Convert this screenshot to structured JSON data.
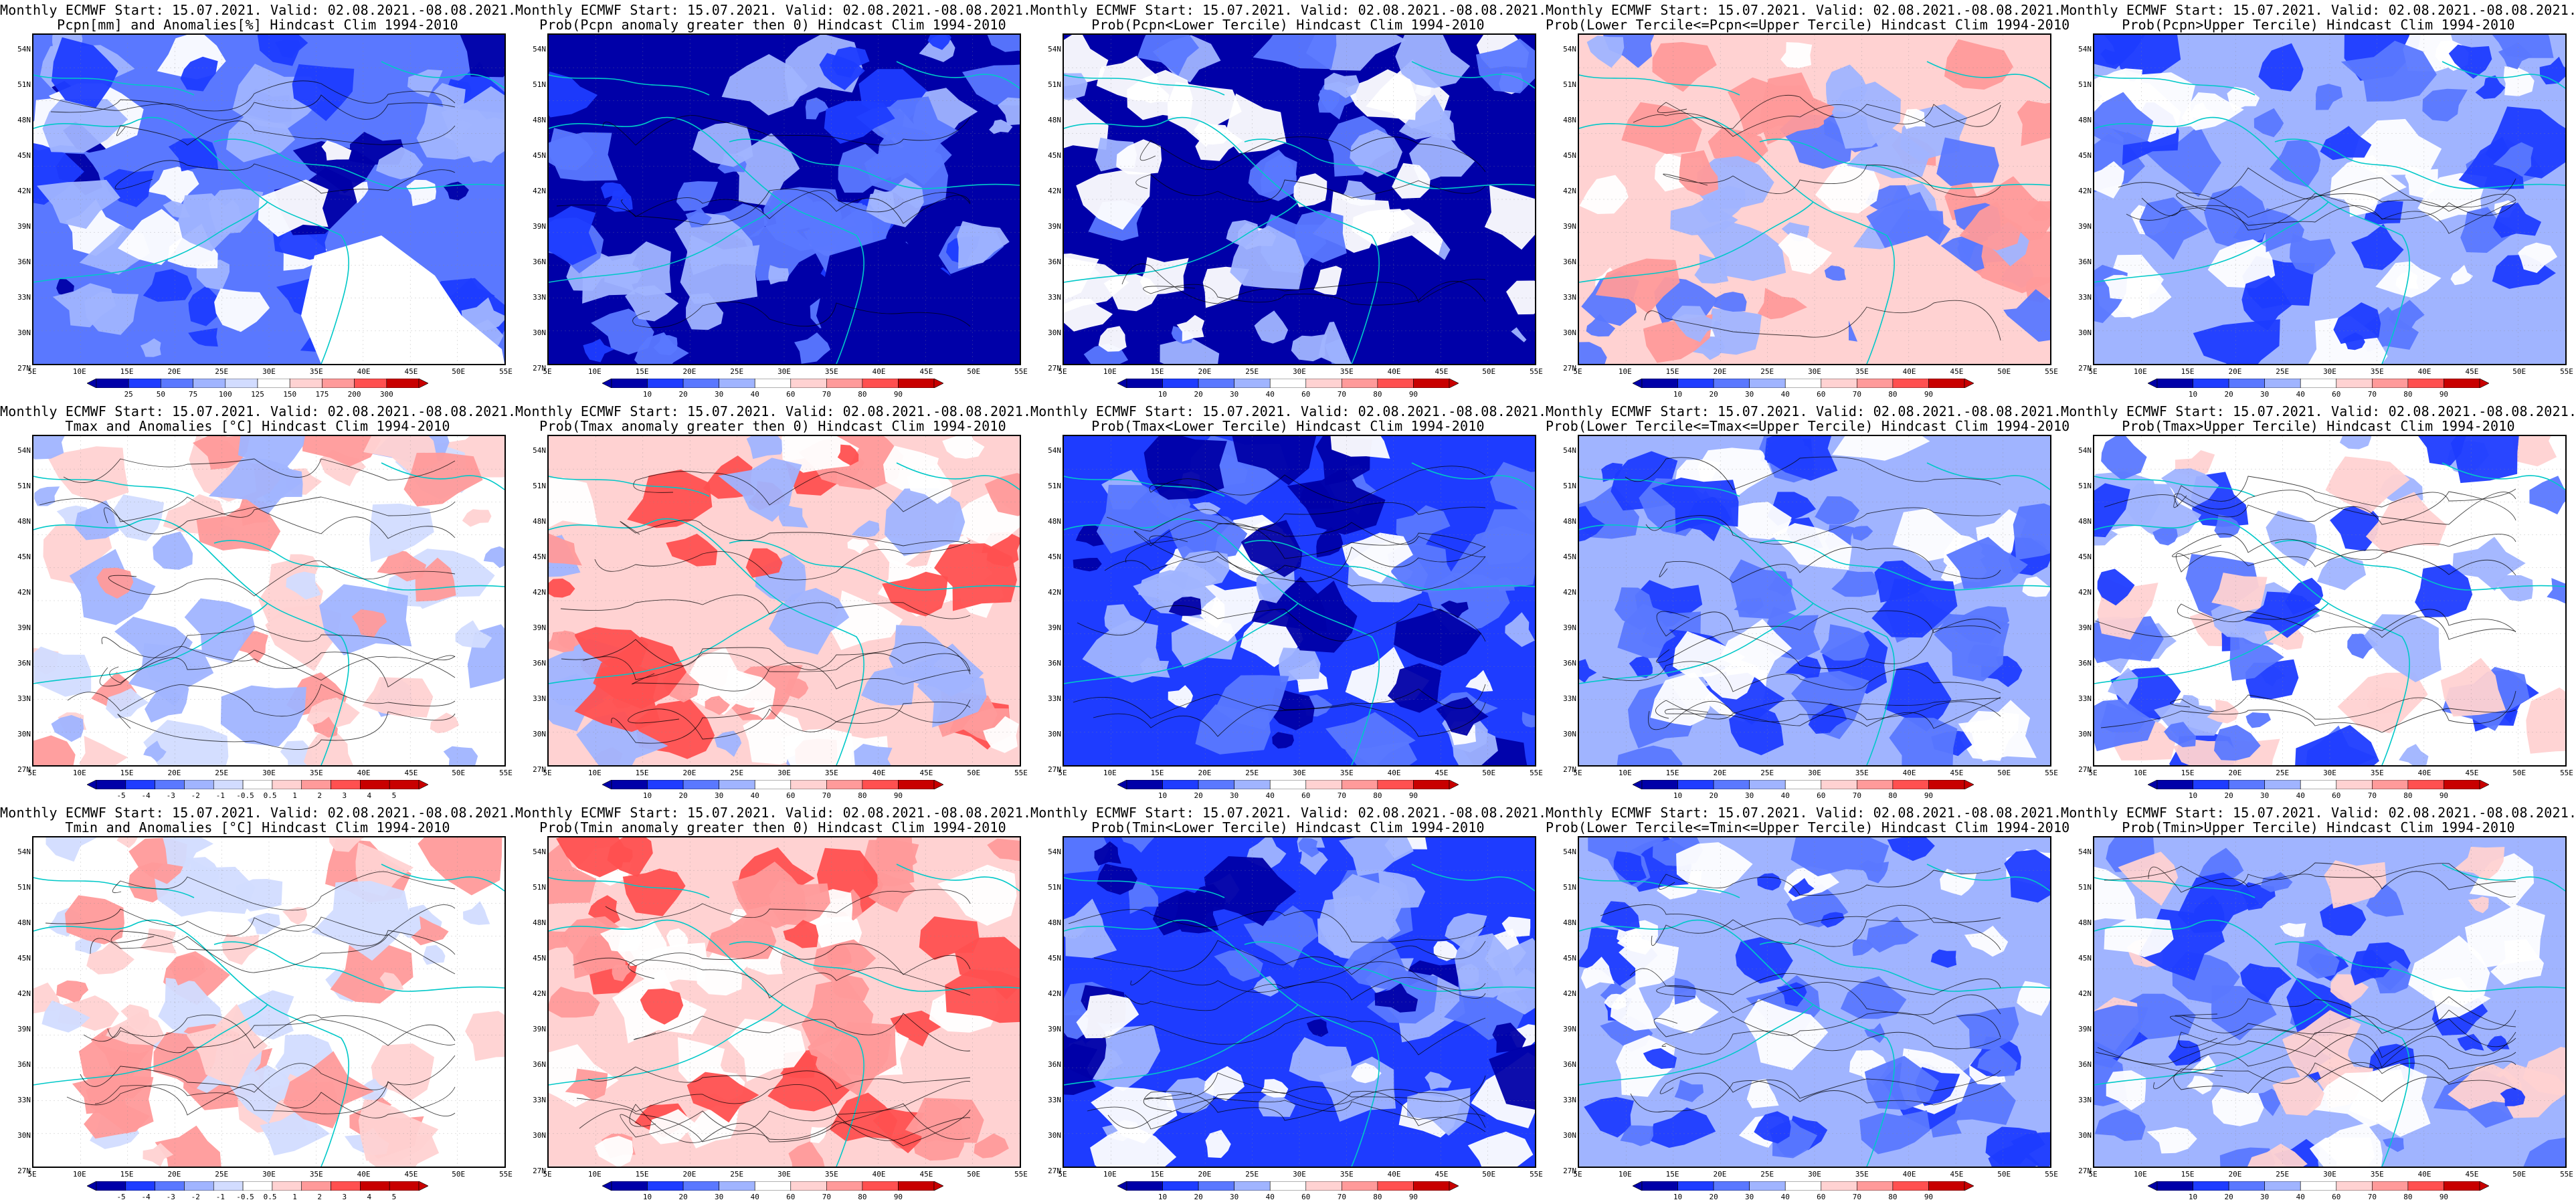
{
  "meta": {
    "lat_labels": [
      "54N",
      "51N",
      "48N",
      "45N",
      "42N",
      "39N",
      "36N",
      "33N",
      "30N",
      "27N"
    ],
    "lon_labels": [
      "5E",
      "10E",
      "15E",
      "20E",
      "25E",
      "30E",
      "35E",
      "40E",
      "45E",
      "50E",
      "55E"
    ],
    "colors": {
      "deep_blue": "#0000a8",
      "blue": "#1e3cff",
      "mid_blue": "#5a78ff",
      "light_blue": "#a0b4ff",
      "pale_blue": "#d2dcff",
      "white": "#ffffff",
      "pale_red": "#ffd2d2",
      "light_red": "#ff9a9a",
      "red": "#ff5050",
      "dark_red": "#c80000",
      "coast": "#00c8c8",
      "contour": "#000000"
    }
  },
  "panels": [
    {
      "title_1": "Monthly ECMWF Start: 15.07.2021. Valid: 02.08.2021.-08.08.2021.",
      "title_2": "Pcpn[mm] and Anomalies[%] Hindcast Clim 1994-2010",
      "colorbar_labels": [
        "25",
        "50",
        "75",
        "100",
        "125",
        "150",
        "175",
        "200",
        "300"
      ],
      "field": "pcpn_anom"
    },
    {
      "title_1": "Monthly ECMWF Start: 15.07.2021. Valid: 02.08.2021.-08.08.2021.",
      "title_2": "Prob(Pcpn anomaly greater then 0) Hindcast Clim 1994-2010",
      "colorbar_labels": [
        "10",
        "20",
        "30",
        "40",
        "60",
        "70",
        "80",
        "90"
      ],
      "field": "pcpn_pos"
    },
    {
      "title_1": "Monthly ECMWF Start: 15.07.2021. Valid: 02.08.2021.-08.08.2021.",
      "title_2": "Prob(Pcpn<Lower Tercile) Hindcast Clim 1994-2010",
      "colorbar_labels": [
        "10",
        "20",
        "30",
        "40",
        "60",
        "70",
        "80",
        "90"
      ],
      "field": "pcpn_low"
    },
    {
      "title_1": "Monthly ECMWF Start: 15.07.2021. Valid: 02.08.2021.-08.08.2021.",
      "title_2": "Prob(Lower Tercile<=Pcpn<=Upper Tercile) Hindcast Clim 1994-2010",
      "colorbar_labels": [
        "10",
        "20",
        "30",
        "40",
        "60",
        "70",
        "80",
        "90"
      ],
      "field": "pcpn_mid"
    },
    {
      "title_1": "Monthly ECMWF Start: 15.07.2021. Valid: 02.08.2021.-08.08.2021.",
      "title_2": "Prob(Pcpn>Upper Tercile) Hindcast Clim 1994-2010",
      "colorbar_labels": [
        "10",
        "20",
        "30",
        "40",
        "60",
        "70",
        "80",
        "90"
      ],
      "field": "pcpn_up"
    },
    {
      "title_1": "Monthly ECMWF Start: 15.07.2021. Valid: 02.08.2021.-08.08.2021.",
      "title_2": "Tmax and Anomalies [°C] Hindcast Clim 1994-2010",
      "colorbar_labels": [
        "-5",
        "-4",
        "-3",
        "-2",
        "-1",
        "-0.5",
        "0.5",
        "1",
        "2",
        "3",
        "4",
        "5"
      ],
      "field": "tmax_anom"
    },
    {
      "title_1": "Monthly ECMWF Start: 15.07.2021. Valid: 02.08.2021.-08.08.2021.",
      "title_2": "Prob(Tmax anomaly greater then 0) Hindcast Clim 1994-2010",
      "colorbar_labels": [
        "10",
        "20",
        "30",
        "40",
        "60",
        "70",
        "80",
        "90"
      ],
      "field": "tmax_pos"
    },
    {
      "title_1": "Monthly ECMWF Start: 15.07.2021. Valid: 02.08.2021.-08.08.2021.",
      "title_2": "Prob(Tmax<Lower Tercile) Hindcast Clim 1994-2010",
      "colorbar_labels": [
        "10",
        "20",
        "30",
        "40",
        "60",
        "70",
        "80",
        "90"
      ],
      "field": "tmax_low"
    },
    {
      "title_1": "Monthly ECMWF Start: 15.07.2021. Valid: 02.08.2021.-08.08.2021.",
      "title_2": "Prob(Lower Tercile<=Tmax<=Upper Tercile) Hindcast Clim 1994-2010",
      "colorbar_labels": [
        "10",
        "20",
        "30",
        "40",
        "60",
        "70",
        "80",
        "90"
      ],
      "field": "tmax_mid"
    },
    {
      "title_1": "Monthly ECMWF Start: 15.07.2021. Valid: 02.08.2021.-08.08.2021.",
      "title_2": "Prob(Tmax>Upper Tercile) Hindcast Clim 1994-2010",
      "colorbar_labels": [
        "10",
        "20",
        "30",
        "40",
        "60",
        "70",
        "80",
        "90"
      ],
      "field": "tmax_up"
    },
    {
      "title_1": "Monthly ECMWF Start: 15.07.2021. Valid: 02.08.2021.-08.08.2021.",
      "title_2": "Tmin and Anomalies [°C] Hindcast Clim 1994-2010",
      "colorbar_labels": [
        "-5",
        "-4",
        "-3",
        "-2",
        "-1",
        "-0.5",
        "0.5",
        "1",
        "2",
        "3",
        "4",
        "5"
      ],
      "field": "tmin_anom"
    },
    {
      "title_1": "Monthly ECMWF Start: 15.07.2021. Valid: 02.08.2021.-08.08.2021.",
      "title_2": "Prob(Tmin anomaly greater then 0) Hindcast Clim 1994-2010",
      "colorbar_labels": [
        "10",
        "20",
        "30",
        "40",
        "60",
        "70",
        "80",
        "90"
      ],
      "field": "tmin_pos"
    },
    {
      "title_1": "Monthly ECMWF Start: 15.07.2021. Valid: 02.08.2021.-08.08.2021.",
      "title_2": "Prob(Tmin<Lower Tercile) Hindcast Clim 1994-2010",
      "colorbar_labels": [
        "10",
        "20",
        "30",
        "40",
        "60",
        "70",
        "80",
        "90"
      ],
      "field": "tmin_low"
    },
    {
      "title_1": "Monthly ECMWF Start: 15.07.2021. Valid: 02.08.2021.-08.08.2021.",
      "title_2": "Prob(Lower Tercile<=Tmin<=Upper Tercile) Hindcast Clim 1994-2010",
      "colorbar_labels": [
        "10",
        "20",
        "30",
        "40",
        "60",
        "70",
        "80",
        "90"
      ],
      "field": "tmin_mid"
    },
    {
      "title_1": "Monthly ECMWF Start: 15.07.2021. Valid: 02.08.2021.-08.08.2021.",
      "title_2": "Prob(Tmin>Upper Tercile) Hindcast Clim 1994-2010",
      "colorbar_labels": [
        "10",
        "20",
        "30",
        "40",
        "60",
        "70",
        "80",
        "90"
      ],
      "field": "tmin_up"
    }
  ]
}
